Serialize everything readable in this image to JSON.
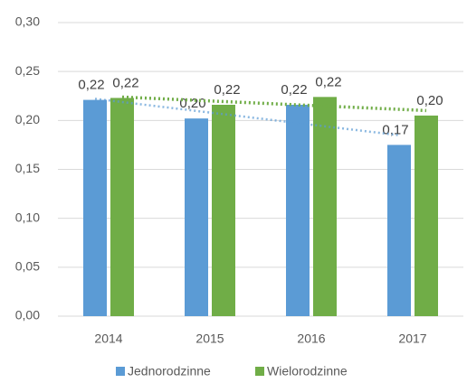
{
  "chart_data": {
    "type": "bar",
    "categories": [
      "2014",
      "2015",
      "2016",
      "2017"
    ],
    "series": [
      {
        "name": "Jednorodzinne",
        "color": "#5b9bd5",
        "values": [
          0.221,
          0.202,
          0.216,
          0.175
        ],
        "value_labels": [
          "0,22",
          "0,20",
          "0,22",
          "0,17"
        ]
      },
      {
        "name": "Wielorodzinne",
        "color": "#70ad47",
        "values": [
          0.223,
          0.216,
          0.224,
          0.205
        ],
        "value_labels": [
          "0,22",
          "0,22",
          "0,22",
          "0,20"
        ]
      }
    ],
    "ylim": [
      0,
      0.3
    ],
    "yticks": [
      {
        "value": 0,
        "label": "0,00"
      },
      {
        "value": 0.05,
        "label": "0,05"
      },
      {
        "value": 0.1,
        "label": "0,10"
      },
      {
        "value": 0.15,
        "label": "0,15"
      },
      {
        "value": 0.2,
        "label": "0,20"
      },
      {
        "value": 0.25,
        "label": "0,25"
      },
      {
        "value": 0.3,
        "label": "0,30"
      }
    ],
    "grid": true,
    "trendlines": "linear",
    "legend": "bottom"
  }
}
